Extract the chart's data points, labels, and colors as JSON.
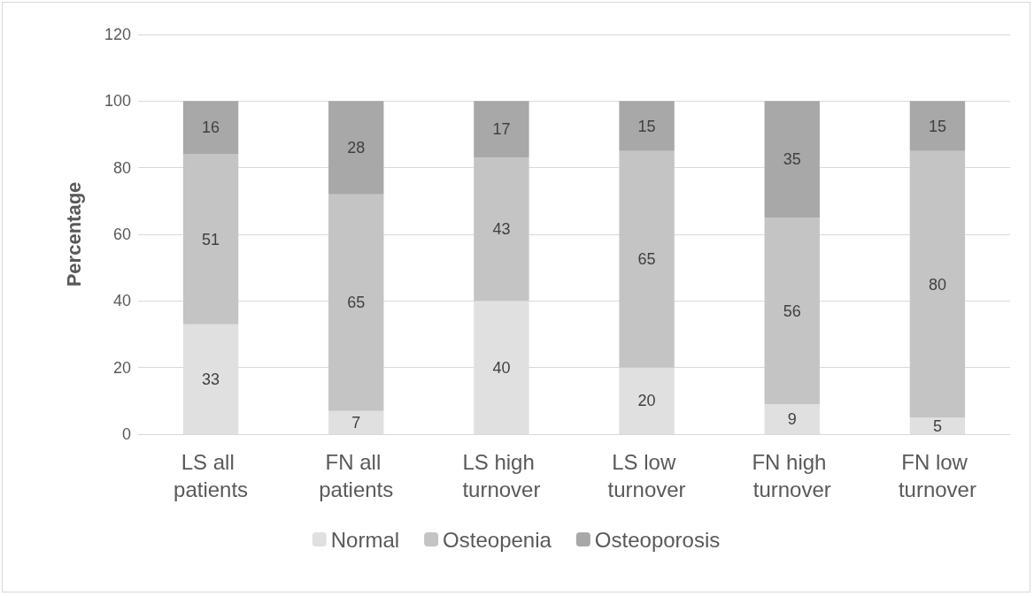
{
  "chart_data": {
    "type": "bar",
    "ylabel": "Percentage",
    "categories": [
      "LS all patients",
      "FN all patients",
      "LS high turnover",
      "LS low turnover",
      "FN high turnover",
      "FN low turnover"
    ],
    "series": [
      {
        "name": "Normal",
        "color": "#e0e0e0",
        "values": [
          33,
          7,
          40,
          20,
          9,
          5
        ]
      },
      {
        "name": "Osteopenia",
        "color": "#c4c4c4",
        "values": [
          51,
          65,
          43,
          65,
          56,
          80
        ]
      },
      {
        "name": "Osteoporosis",
        "color": "#a8a8a8",
        "values": [
          16,
          28,
          17,
          15,
          35,
          15
        ]
      }
    ],
    "stacked": true,
    "ylim": [
      0,
      120
    ],
    "yticks": [
      0,
      20,
      40,
      60,
      80,
      100,
      120
    ],
    "grid": "y",
    "legend": "bottom",
    "data_labels": true
  }
}
